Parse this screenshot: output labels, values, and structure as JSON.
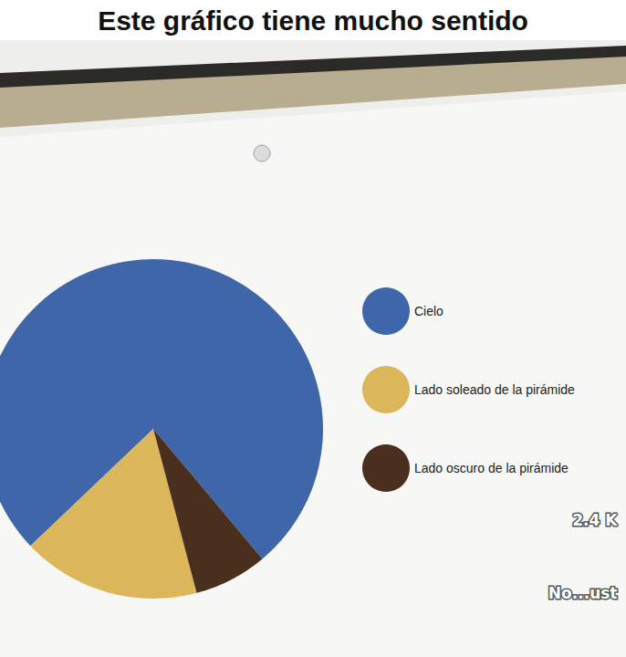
{
  "chart_data": {
    "type": "pie",
    "title": "Este gráfico tiene mucho sentido",
    "categories": [
      "Cielo",
      "Lado soleado de la pirámide",
      "Lado oscuro de la pirámide"
    ],
    "values": [
      76,
      17,
      7
    ],
    "colors": [
      "#3f66a8",
      "#dcb65a",
      "#4a2f1f"
    ],
    "legend": "right",
    "annotations": [
      "2.4 K",
      "No...ust"
    ]
  }
}
